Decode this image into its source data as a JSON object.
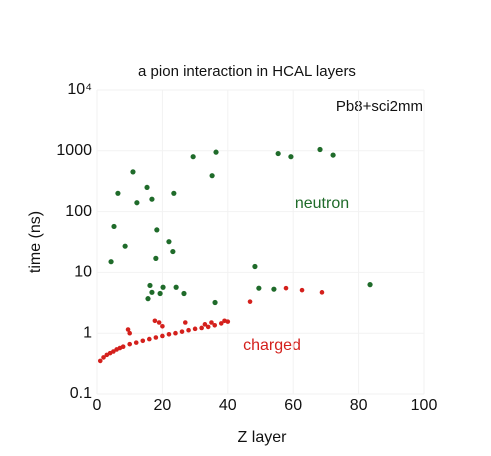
{
  "chart_data": {
    "type": "scatter",
    "title": "a pion interaction in HCAL layers",
    "x_label": "Z layer",
    "y_label": "time (ns)",
    "annotations": [
      "Pb8+sci2mm",
      "neutron",
      "charged"
    ],
    "xlim": [
      0,
      100
    ],
    "xticks": [
      0,
      20,
      40,
      60,
      80,
      100
    ],
    "ylim": [
      0.1,
      10000
    ],
    "yticks": [
      0.1,
      1,
      10,
      100,
      1000,
      {
        "value": 10000,
        "label": "10⁴"
      }
    ],
    "log_y": true,
    "grid": true,
    "series": [
      {
        "name": "neutron",
        "color": "#1f6b2a",
        "x": [
          11,
          6.4,
          15.3,
          12.2,
          16.8,
          23.5,
          29.4,
          36.4,
          35.2,
          55.4,
          59.3,
          68.2,
          72.2,
          5.2,
          8.6,
          4.3,
          18.3,
          22,
          23.2,
          18,
          16.2,
          16.8,
          15.6,
          20.2,
          24.2,
          26.6,
          19.3,
          36.1,
          48.3,
          49.5,
          54.1,
          83.5
        ],
        "values": [
          450,
          200,
          250,
          140,
          160,
          200,
          800,
          950,
          390,
          900,
          800,
          1050,
          850,
          57,
          27,
          15,
          50,
          32,
          22,
          17,
          6.1,
          4.7,
          3.7,
          5.7,
          5.7,
          4.5,
          4.5,
          3.2,
          12.5,
          5.5,
          5.3,
          6.3
        ]
      },
      {
        "name": "charged",
        "color": "#d4201c",
        "x": [
          1,
          2,
          3,
          4,
          5,
          6,
          7,
          8,
          10,
          12,
          14,
          16,
          18,
          20,
          22,
          24,
          26,
          28,
          30,
          32,
          34,
          36,
          38,
          40,
          9.5,
          10,
          17.7,
          19,
          20,
          27,
          33,
          39,
          35,
          46.8,
          57.8,
          62.7,
          68.8
        ],
        "values": [
          0.35,
          0.4,
          0.44,
          0.47,
          0.5,
          0.54,
          0.57,
          0.6,
          0.66,
          0.7,
          0.75,
          0.8,
          0.85,
          0.9,
          0.96,
          1.0,
          1.06,
          1.12,
          1.18,
          1.22,
          1.27,
          1.35,
          1.45,
          1.55,
          1.15,
          1.0,
          1.6,
          1.5,
          1.3,
          1.5,
          1.4,
          1.6,
          1.5,
          3.3,
          5.5,
          5.1,
          4.7
        ]
      }
    ]
  }
}
